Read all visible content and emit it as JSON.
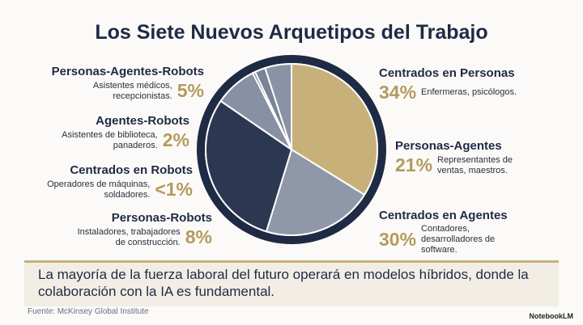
{
  "chart_data": {
    "type": "pie",
    "title": "Los Siete Nuevos Arquetipos del Trabajo",
    "categories": [
      "Centrados en Personas",
      "Personas-Agentes",
      "Centrados en Agentes",
      "Personas-Robots",
      "Centrados en Robots",
      "Agentes-Robots",
      "Personas-Agentes-Robots"
    ],
    "descriptions": [
      "Enfermeras, psicólogos.",
      "Representantes de ventas, maestros.",
      "Contadores, desarrolladores de software.",
      "Instaladores, trabajadores de construcción.",
      "Operadores de máquinas, soldadores.",
      "Asistentes de biblioteca, panaderos.",
      "Asistentes médicos, recepcionistas."
    ],
    "values": [
      34,
      21,
      30,
      8,
      0.5,
      2,
      5
    ],
    "value_labels": [
      "34%",
      "21%",
      "30%",
      "8%",
      "<1%",
      "2%",
      "5%"
    ],
    "colors": [
      "#c8b07a",
      "#8f97a8",
      "#2c3751",
      "#8891a3",
      "#6e788c",
      "#7a8498",
      "#8a93a6"
    ],
    "note": "La mayoría de la fuerza laboral del futuro operará en modelos híbridos, donde la colaboración con la IA es fundamental.",
    "source": "Fuente: McKinsey Global Institute",
    "brand": "NotebookLM"
  }
}
